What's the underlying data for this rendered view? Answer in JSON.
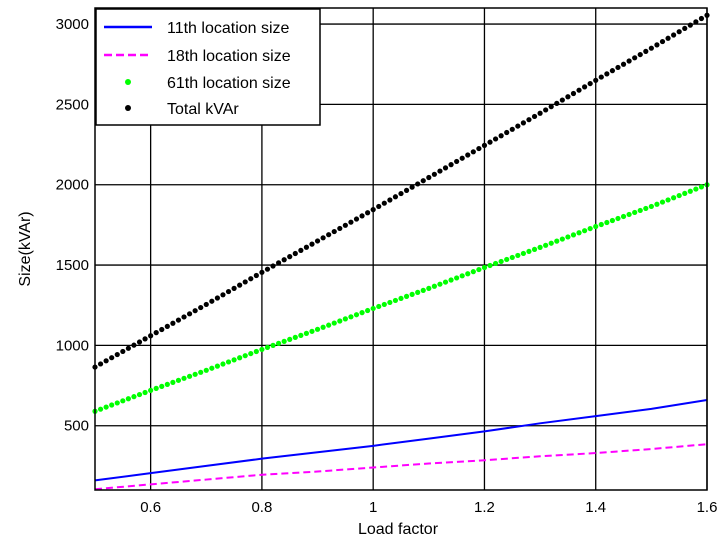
{
  "chart_data": {
    "type": "line",
    "xlabel": "Load factor",
    "ylabel": "Size(kVAr)",
    "xlim": [
      0.5,
      1.6
    ],
    "ylim": [
      100,
      3100
    ],
    "xticks": [
      0.6,
      0.8,
      1,
      1.2,
      1.4,
      1.6
    ],
    "xtick_labels": [
      "0.6",
      "0.8",
      "1",
      "1.2",
      "1.4",
      "1.6"
    ],
    "yticks": [
      500,
      1000,
      1500,
      2000,
      2500,
      3000
    ],
    "ytick_labels": [
      "500",
      "1000",
      "1500",
      "2000",
      "2500",
      "3000"
    ],
    "grid": true,
    "legend_position": "top-left",
    "series": [
      {
        "name": "11th location size",
        "style": "solid-line",
        "color": "#0000ff",
        "x": [
          0.5,
          0.6,
          0.7,
          0.8,
          0.9,
          1.0,
          1.1,
          1.2,
          1.3,
          1.4,
          1.5,
          1.6
        ],
        "values": [
          160,
          205,
          250,
          295,
          335,
          375,
          420,
          465,
          515,
          560,
          605,
          660
        ]
      },
      {
        "name": "18th location size",
        "style": "dashed-line",
        "color": "#ff00ff",
        "x": [
          0.5,
          0.6,
          0.7,
          0.8,
          0.9,
          1.0,
          1.1,
          1.2,
          1.3,
          1.4,
          1.5,
          1.6
        ],
        "values": [
          105,
          135,
          165,
          195,
          215,
          240,
          265,
          285,
          310,
          330,
          355,
          385
        ]
      },
      {
        "name": "61th location size",
        "style": "dots",
        "color": "#00ff00",
        "x": [
          0.5,
          0.6,
          0.7,
          0.8,
          0.9,
          1.0,
          1.1,
          1.2,
          1.3,
          1.4,
          1.5,
          1.6
        ],
        "values": [
          590,
          720,
          845,
          975,
          1100,
          1230,
          1355,
          1485,
          1610,
          1740,
          1865,
          2000
        ]
      },
      {
        "name": "Total kVAr",
        "style": "dots",
        "color": "#000000",
        "x": [
          0.5,
          0.6,
          0.7,
          0.8,
          0.9,
          1.0,
          1.1,
          1.2,
          1.3,
          1.4,
          1.5,
          1.6
        ],
        "values": [
          865,
          1060,
          1255,
          1455,
          1650,
          1845,
          2045,
          2245,
          2445,
          2650,
          2850,
          3055
        ]
      }
    ]
  }
}
